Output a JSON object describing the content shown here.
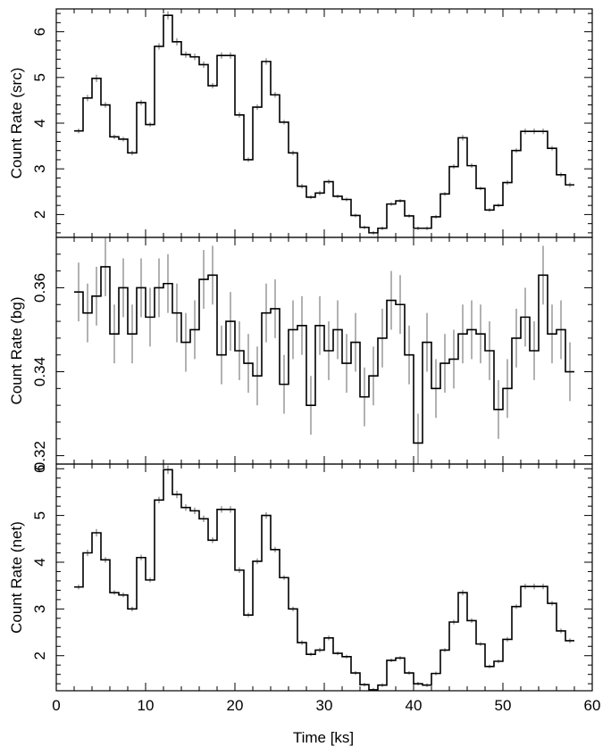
{
  "chart_data": {
    "type": "line",
    "xlabel": "Time [ks]",
    "xlim": [
      0,
      60
    ],
    "x_ticks": [
      0,
      10,
      20,
      30,
      40,
      50,
      60
    ],
    "panels": [
      {
        "id": "src",
        "ylabel": "Count Rate (src)",
        "ylim": [
          1.5,
          6.5
        ],
        "y_ticks": [
          2,
          3,
          4,
          5,
          6
        ],
        "x": [
          2.5,
          3.5,
          4.5,
          5.5,
          6.5,
          7.5,
          8.5,
          9.5,
          10.5,
          11.5,
          12.5,
          13.5,
          14.5,
          15.5,
          16.5,
          17.5,
          18.5,
          19.5,
          20.5,
          21.5,
          22.5,
          23.5,
          24.5,
          25.5,
          26.5,
          27.5,
          28.5,
          29.5,
          30.5,
          31.5,
          32.5,
          33.5,
          34.5,
          35.5,
          36.5,
          37.5,
          38.5,
          39.5,
          40.5,
          41.5,
          42.5,
          43.5,
          44.5,
          45.5,
          46.5,
          47.5,
          48.5,
          49.5,
          50.5,
          51.5,
          52.5,
          53.5,
          54.5,
          55.5,
          56.5,
          57.5
        ],
        "y": [
          3.83,
          4.55,
          4.98,
          4.4,
          3.7,
          3.65,
          3.35,
          4.45,
          3.97,
          5.68,
          6.36,
          5.78,
          5.5,
          5.45,
          5.28,
          4.82,
          5.48,
          5.48,
          4.18,
          3.2,
          4.35,
          5.35,
          4.62,
          4.02,
          3.35,
          2.62,
          2.38,
          2.47,
          2.72,
          2.4,
          2.33,
          1.98,
          1.72,
          1.6,
          1.7,
          2.23,
          2.3,
          1.97,
          1.7,
          1.7,
          1.95,
          2.45,
          3.05,
          3.68,
          3.07,
          2.57,
          2.1,
          2.2,
          2.7,
          3.4,
          3.82,
          3.82,
          3.82,
          3.45,
          2.87,
          2.65
        ],
        "err": [
          0.05,
          0.07,
          0.08,
          0.06,
          0.05,
          0.05,
          0.05,
          0.06,
          0.05,
          0.07,
          0.09,
          0.08,
          0.07,
          0.07,
          0.07,
          0.06,
          0.07,
          0.07,
          0.06,
          0.05,
          0.06,
          0.07,
          0.06,
          0.05,
          0.05,
          0.05,
          0.04,
          0.05,
          0.05,
          0.04,
          0.04,
          0.04,
          0.04,
          0.04,
          0.04,
          0.04,
          0.04,
          0.04,
          0.04,
          0.04,
          0.04,
          0.04,
          0.05,
          0.06,
          0.05,
          0.04,
          0.04,
          0.04,
          0.05,
          0.05,
          0.06,
          0.06,
          0.06,
          0.05,
          0.05,
          0.05
        ]
      },
      {
        "id": "bg",
        "ylabel": "Count Rate (bg)",
        "ylim": [
          0.318,
          0.372
        ],
        "y_ticks": [
          0.32,
          0.34,
          0.36
        ],
        "x": [
          2.5,
          3.5,
          4.5,
          5.5,
          6.5,
          7.5,
          8.5,
          9.5,
          10.5,
          11.5,
          12.5,
          13.5,
          14.5,
          15.5,
          16.5,
          17.5,
          18.5,
          19.5,
          20.5,
          21.5,
          22.5,
          23.5,
          24.5,
          25.5,
          26.5,
          27.5,
          28.5,
          29.5,
          30.5,
          31.5,
          32.5,
          33.5,
          34.5,
          35.5,
          36.5,
          37.5,
          38.5,
          39.5,
          40.5,
          41.5,
          42.5,
          43.5,
          44.5,
          45.5,
          46.5,
          47.5,
          48.5,
          49.5,
          50.5,
          51.5,
          52.5,
          53.5,
          54.5,
          55.5,
          56.5,
          57.5
        ],
        "y": [
          0.359,
          0.354,
          0.358,
          0.365,
          0.349,
          0.36,
          0.349,
          0.36,
          0.353,
          0.36,
          0.361,
          0.354,
          0.347,
          0.35,
          0.362,
          0.363,
          0.344,
          0.352,
          0.345,
          0.342,
          0.339,
          0.354,
          0.355,
          0.337,
          0.35,
          0.351,
          0.332,
          0.351,
          0.345,
          0.35,
          0.342,
          0.347,
          0.334,
          0.339,
          0.348,
          0.357,
          0.356,
          0.344,
          0.323,
          0.347,
          0.336,
          0.342,
          0.343,
          0.349,
          0.35,
          0.349,
          0.345,
          0.331,
          0.336,
          0.348,
          0.353,
          0.345,
          0.363,
          0.349,
          0.35,
          0.34
        ],
        "err": [
          0.007,
          0.007,
          0.007,
          0.007,
          0.007,
          0.007,
          0.007,
          0.007,
          0.007,
          0.007,
          0.007,
          0.007,
          0.007,
          0.007,
          0.007,
          0.007,
          0.007,
          0.007,
          0.007,
          0.007,
          0.007,
          0.007,
          0.007,
          0.007,
          0.007,
          0.007,
          0.007,
          0.007,
          0.007,
          0.007,
          0.007,
          0.007,
          0.007,
          0.007,
          0.007,
          0.007,
          0.007,
          0.007,
          0.007,
          0.007,
          0.007,
          0.007,
          0.007,
          0.007,
          0.007,
          0.007,
          0.007,
          0.007,
          0.007,
          0.007,
          0.007,
          0.007,
          0.007,
          0.007,
          0.007,
          0.007
        ]
      },
      {
        "id": "net",
        "ylabel": "Count Rate (net)",
        "ylim": [
          1.25,
          6.1
        ],
        "y_ticks": [
          2,
          3,
          4,
          5,
          6
        ],
        "x": [
          2.5,
          3.5,
          4.5,
          5.5,
          6.5,
          7.5,
          8.5,
          9.5,
          10.5,
          11.5,
          12.5,
          13.5,
          14.5,
          15.5,
          16.5,
          17.5,
          18.5,
          19.5,
          20.5,
          21.5,
          22.5,
          23.5,
          24.5,
          25.5,
          26.5,
          27.5,
          28.5,
          29.5,
          30.5,
          31.5,
          32.5,
          33.5,
          34.5,
          35.5,
          36.5,
          37.5,
          38.5,
          39.5,
          40.5,
          41.5,
          42.5,
          43.5,
          44.5,
          45.5,
          46.5,
          47.5,
          48.5,
          49.5,
          50.5,
          51.5,
          52.5,
          53.5,
          54.5,
          55.5,
          56.5,
          57.5
        ],
        "y": [
          3.47,
          4.2,
          4.63,
          4.05,
          3.35,
          3.3,
          3.0,
          4.1,
          3.62,
          5.33,
          5.98,
          5.45,
          5.17,
          5.1,
          4.93,
          4.47,
          5.13,
          5.13,
          3.83,
          2.87,
          4.02,
          5.0,
          4.27,
          3.67,
          3.0,
          2.28,
          2.03,
          2.12,
          2.38,
          2.05,
          1.98,
          1.63,
          1.38,
          1.27,
          1.37,
          1.9,
          1.95,
          1.63,
          1.4,
          1.37,
          1.62,
          2.12,
          2.72,
          3.35,
          2.75,
          2.25,
          1.77,
          1.88,
          2.35,
          3.05,
          3.48,
          3.48,
          3.48,
          3.12,
          2.53,
          2.32
        ],
        "err": [
          0.05,
          0.07,
          0.08,
          0.06,
          0.05,
          0.05,
          0.05,
          0.06,
          0.05,
          0.07,
          0.09,
          0.08,
          0.07,
          0.07,
          0.07,
          0.06,
          0.07,
          0.07,
          0.06,
          0.05,
          0.06,
          0.07,
          0.06,
          0.05,
          0.05,
          0.05,
          0.04,
          0.05,
          0.05,
          0.04,
          0.04,
          0.04,
          0.04,
          0.04,
          0.04,
          0.04,
          0.04,
          0.04,
          0.04,
          0.04,
          0.04,
          0.04,
          0.05,
          0.06,
          0.05,
          0.04,
          0.04,
          0.04,
          0.05,
          0.05,
          0.06,
          0.06,
          0.06,
          0.05,
          0.05,
          0.05
        ]
      }
    ],
    "bin_width": 1.0,
    "grid": false,
    "legend": "none",
    "colors": {
      "line": "#000000",
      "error_bar": "#999999",
      "frame": "#000000"
    }
  }
}
